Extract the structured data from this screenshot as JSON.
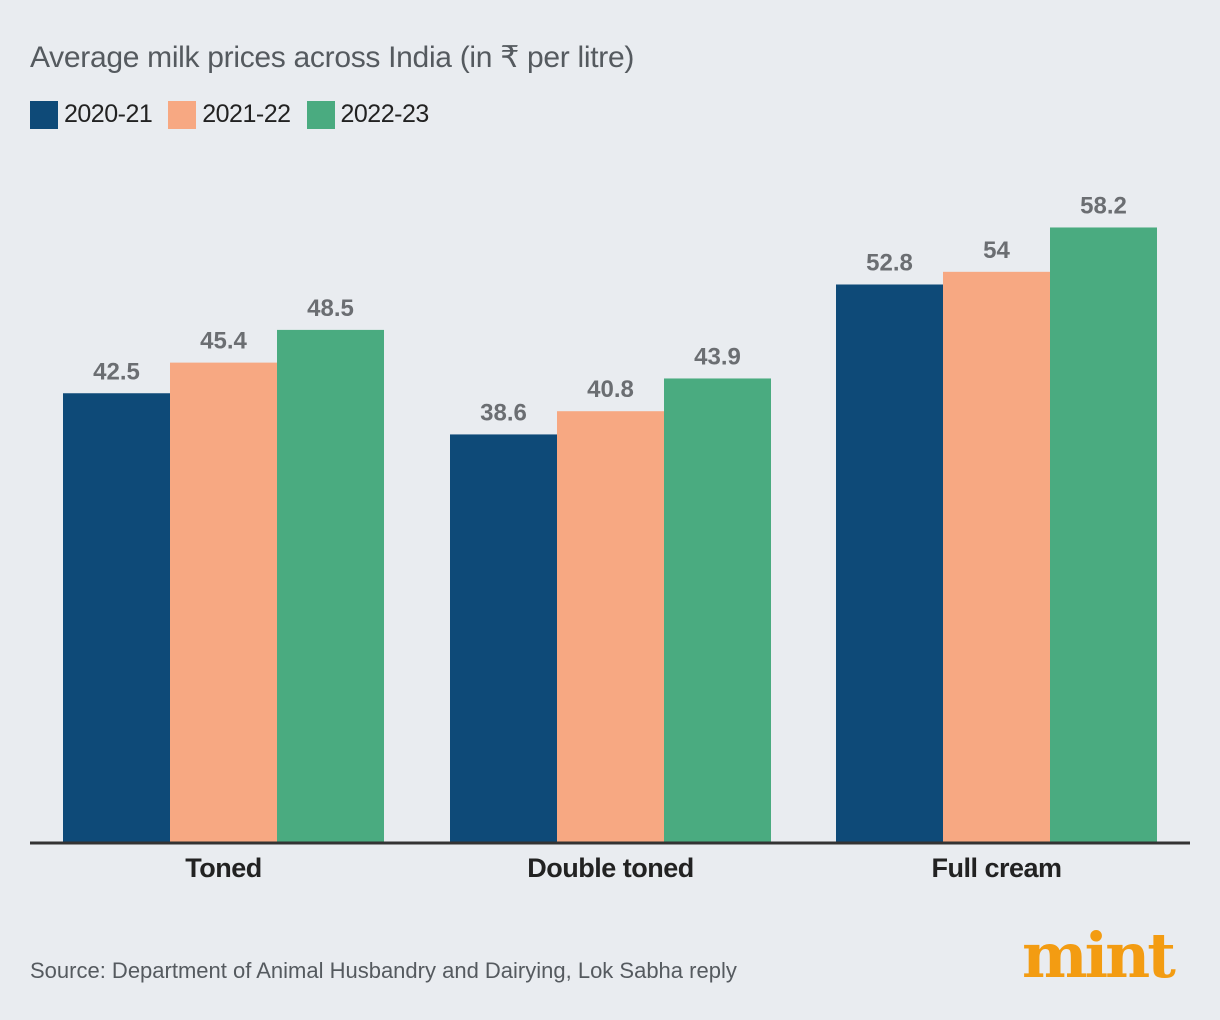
{
  "colors": {
    "background": "#e9ecf0",
    "series": [
      "#0e4a78",
      "#f7a882",
      "#4aab80"
    ],
    "axis": "#333333",
    "value_label": "#6b6e72",
    "logo": "#f39c12"
  },
  "footer": {
    "source": "Source: Department of Animal Husbandry and Dairying, Lok Sabha reply",
    "logo_text": "mint"
  },
  "chart_data": {
    "type": "bar",
    "title": "Average milk prices across India (in ₹ per litre)",
    "categories": [
      "Toned",
      "Double toned",
      "Full cream"
    ],
    "series": [
      {
        "name": "2020-21",
        "values": [
          42.5,
          38.6,
          52.8
        ]
      },
      {
        "name": "2021-22",
        "values": [
          45.4,
          40.8,
          54
        ]
      },
      {
        "name": "2022-23",
        "values": [
          48.5,
          43.9,
          58.2
        ]
      }
    ],
    "ylim": [
      0,
      68
    ],
    "grid": false,
    "legend": "top-left",
    "xlabel": "",
    "ylabel": ""
  }
}
